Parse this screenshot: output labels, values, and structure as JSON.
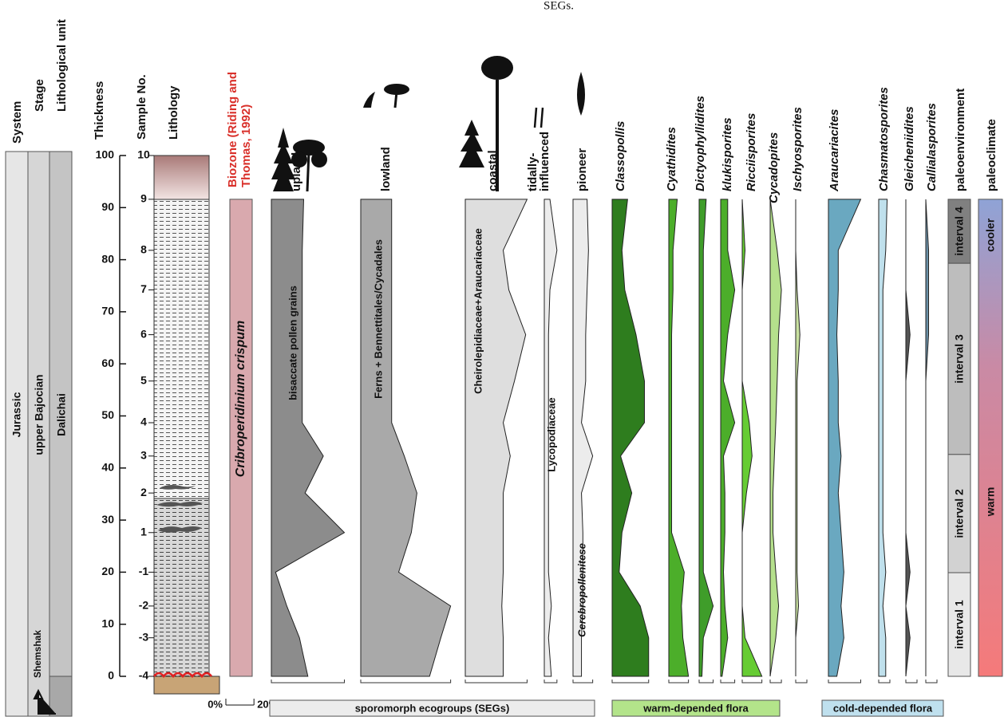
{
  "caption_fragment": "SEGs.",
  "headers": {
    "system": "System",
    "stage": "Stage",
    "unit": "Lithological unit"
  },
  "stratigraphy": {
    "system": "Jurassic",
    "stage": "upper Bajocian",
    "unit": "Dalichai",
    "lower_unit": "Shemshak"
  },
  "thickness": {
    "label": "Thickness",
    "lim": [
      0,
      100
    ],
    "ticks": [
      0,
      10,
      20,
      30,
      40,
      50,
      60,
      70,
      80,
      90,
      100
    ]
  },
  "samples": {
    "label": "Sample No.",
    "numbers": [
      10,
      9,
      8,
      7,
      6,
      5,
      4,
      3,
      2,
      1,
      -1,
      -2,
      -3,
      -4
    ],
    "depths": [
      100,
      91.6,
      81.8,
      74.2,
      65.6,
      56.7,
      48.7,
      42.3,
      35.2,
      27.6,
      20,
      13.5,
      7.4,
      0
    ]
  },
  "lithology": {
    "label": "Lithology"
  },
  "biozone": {
    "label_lines": [
      "Biozone (Riding and",
      "Thomas, 1992)"
    ],
    "name": "Cribroperidinium crispum",
    "color": "#d9a9ae"
  },
  "scale": {
    "ticks": [
      {
        "value": 0,
        "label": "0%"
      },
      {
        "value": 20,
        "label": "20%"
      }
    ]
  },
  "profiles": [
    {
      "label": [
        "upland"
      ],
      "group": 0,
      "color": "#8c8c8c",
      "inner_label": "bisaccate pollen grains",
      "values": [
        null,
        23,
        22,
        22,
        22,
        22,
        22,
        37,
        24,
        52,
        3,
        11,
        20,
        26
      ]
    },
    {
      "label": [
        "lowland"
      ],
      "group": 0,
      "color": "#a9a9a9",
      "inner_label": "Ferns + Bennettitales/Cycadales",
      "values": [
        null,
        22,
        22,
        22,
        22,
        22,
        22,
        31,
        40,
        36,
        27,
        64,
        57,
        49
      ]
    },
    {
      "label": [
        "coastal"
      ],
      "group": 0,
      "color": "#dedede",
      "inner_label": "Cheirolepidiaceae+Araucariaceae",
      "values": [
        null,
        44,
        27,
        31,
        43,
        35,
        27,
        32,
        27,
        27,
        27,
        26,
        27,
        27
      ]
    },
    {
      "label": [
        "tidally-",
        "influenced"
      ],
      "group": 0,
      "color": "#ececec",
      "inner_label": "Lycopodiaceae",
      "values": [
        null,
        4,
        9,
        4,
        3,
        3,
        3,
        3,
        3,
        3,
        3,
        5,
        3,
        5
      ]
    },
    {
      "label": [
        "pioneer"
      ],
      "group": 0,
      "color": "#ececec",
      "inner_label": "Cerebropollenitese",
      "values": [
        null,
        10,
        11,
        10,
        9,
        9,
        6,
        14,
        6,
        7,
        7,
        7,
        6,
        6
      ]
    },
    {
      "label": [
        "Classopollis"
      ],
      "group": 1,
      "color": "#2e7d1e",
      "values": [
        null,
        11,
        7,
        9,
        17,
        23,
        23,
        6,
        14,
        7,
        5,
        20,
        26,
        26
      ]
    },
    {
      "label": [
        "Cyathidites"
      ],
      "group": 1,
      "color": "#4cae2a",
      "values": [
        null,
        6,
        3,
        3,
        2,
        2,
        2,
        2,
        2,
        2,
        11,
        9,
        10,
        14
      ]
    },
    {
      "label": [
        "Dictyophyllidites"
      ],
      "group": 1,
      "color": "#3f9d2a",
      "values": [
        null,
        5,
        3,
        3,
        3,
        3,
        3,
        3,
        3,
        3,
        3,
        10,
        3,
        2
      ]
    },
    {
      "label": [
        "klukisporites"
      ],
      "group": 1,
      "color": "#4cae2a",
      "values": [
        null,
        5,
        5,
        10,
        5,
        2,
        10,
        2,
        3,
        3,
        2,
        3,
        5,
        1
      ]
    },
    {
      "label": [
        "Ricciisporites"
      ],
      "group": 1,
      "color": "#66cc33",
      "values": [
        null,
        0,
        2,
        0,
        0,
        0,
        5,
        7,
        3,
        0,
        0,
        0,
        2,
        14
      ]
    },
    {
      "label": [
        "Cycadopites"
      ],
      "group": 1,
      "color": "#b5e08c",
      "values": [
        null,
        0,
        5,
        8,
        6,
        5,
        4,
        3,
        2,
        2,
        4,
        6,
        4,
        0
      ]
    },
    {
      "label": [
        "Ischyosporites"
      ],
      "group": 1,
      "color": "#c8e0a0",
      "values": [
        null,
        0,
        0,
        1,
        3,
        1,
        1,
        1,
        1,
        1,
        1,
        2,
        0,
        0
      ]
    },
    {
      "label": [
        "Araucariacites"
      ],
      "group": 2,
      "color": "#6aa8c0",
      "values": [
        null,
        23,
        7,
        7,
        6,
        7,
        7,
        9,
        7,
        9,
        11,
        9,
        11,
        6
      ]
    },
    {
      "label": [
        "Chasmatosporites"
      ],
      "group": 2,
      "color": "#bfe0ec",
      "values": [
        null,
        6,
        5,
        3,
        3,
        3,
        3,
        3,
        3,
        3,
        5,
        3,
        5,
        5
      ]
    },
    {
      "label": [
        "Gleicheniidites"
      ],
      "group": 2,
      "color": "#555555",
      "values": [
        null,
        0,
        0,
        0,
        3,
        0,
        0,
        0,
        0,
        0,
        3,
        0,
        3,
        0
      ]
    },
    {
      "label": [
        "Callialasporites"
      ],
      "group": 2,
      "color": "#6a8fa6",
      "values": [
        null,
        0,
        2,
        2,
        2,
        0,
        0,
        0,
        0,
        0,
        0,
        0,
        0,
        0
      ]
    }
  ],
  "groups": [
    {
      "label": "sporomorph ecogroups (SEGs)",
      "color": "#ececec"
    },
    {
      "label": "warm-depended flora",
      "color": "#b3e48a"
    },
    {
      "label": "cold-depended flora",
      "color": "#bfe0ee"
    }
  ],
  "paleoenvironment": {
    "label": "paleoenvironment",
    "intervals": [
      {
        "name": "interval 4",
        "top": 91.6,
        "bottom": 79.3,
        "color": "#808080"
      },
      {
        "name": "interval 3",
        "top": 79.3,
        "bottom": 42.6,
        "color": "#bdbdbd"
      },
      {
        "name": "interval 2",
        "top": 42.6,
        "bottom": 19.9,
        "color": "#d2d2d2"
      },
      {
        "name": "interval 1",
        "top": 19.9,
        "bottom": 0,
        "color": "#e8e8e8"
      }
    ]
  },
  "paleoclimate": {
    "label": "paleoclimate",
    "zones": [
      "cooler",
      "warm"
    ],
    "top": 91.6,
    "bottom": 0
  }
}
